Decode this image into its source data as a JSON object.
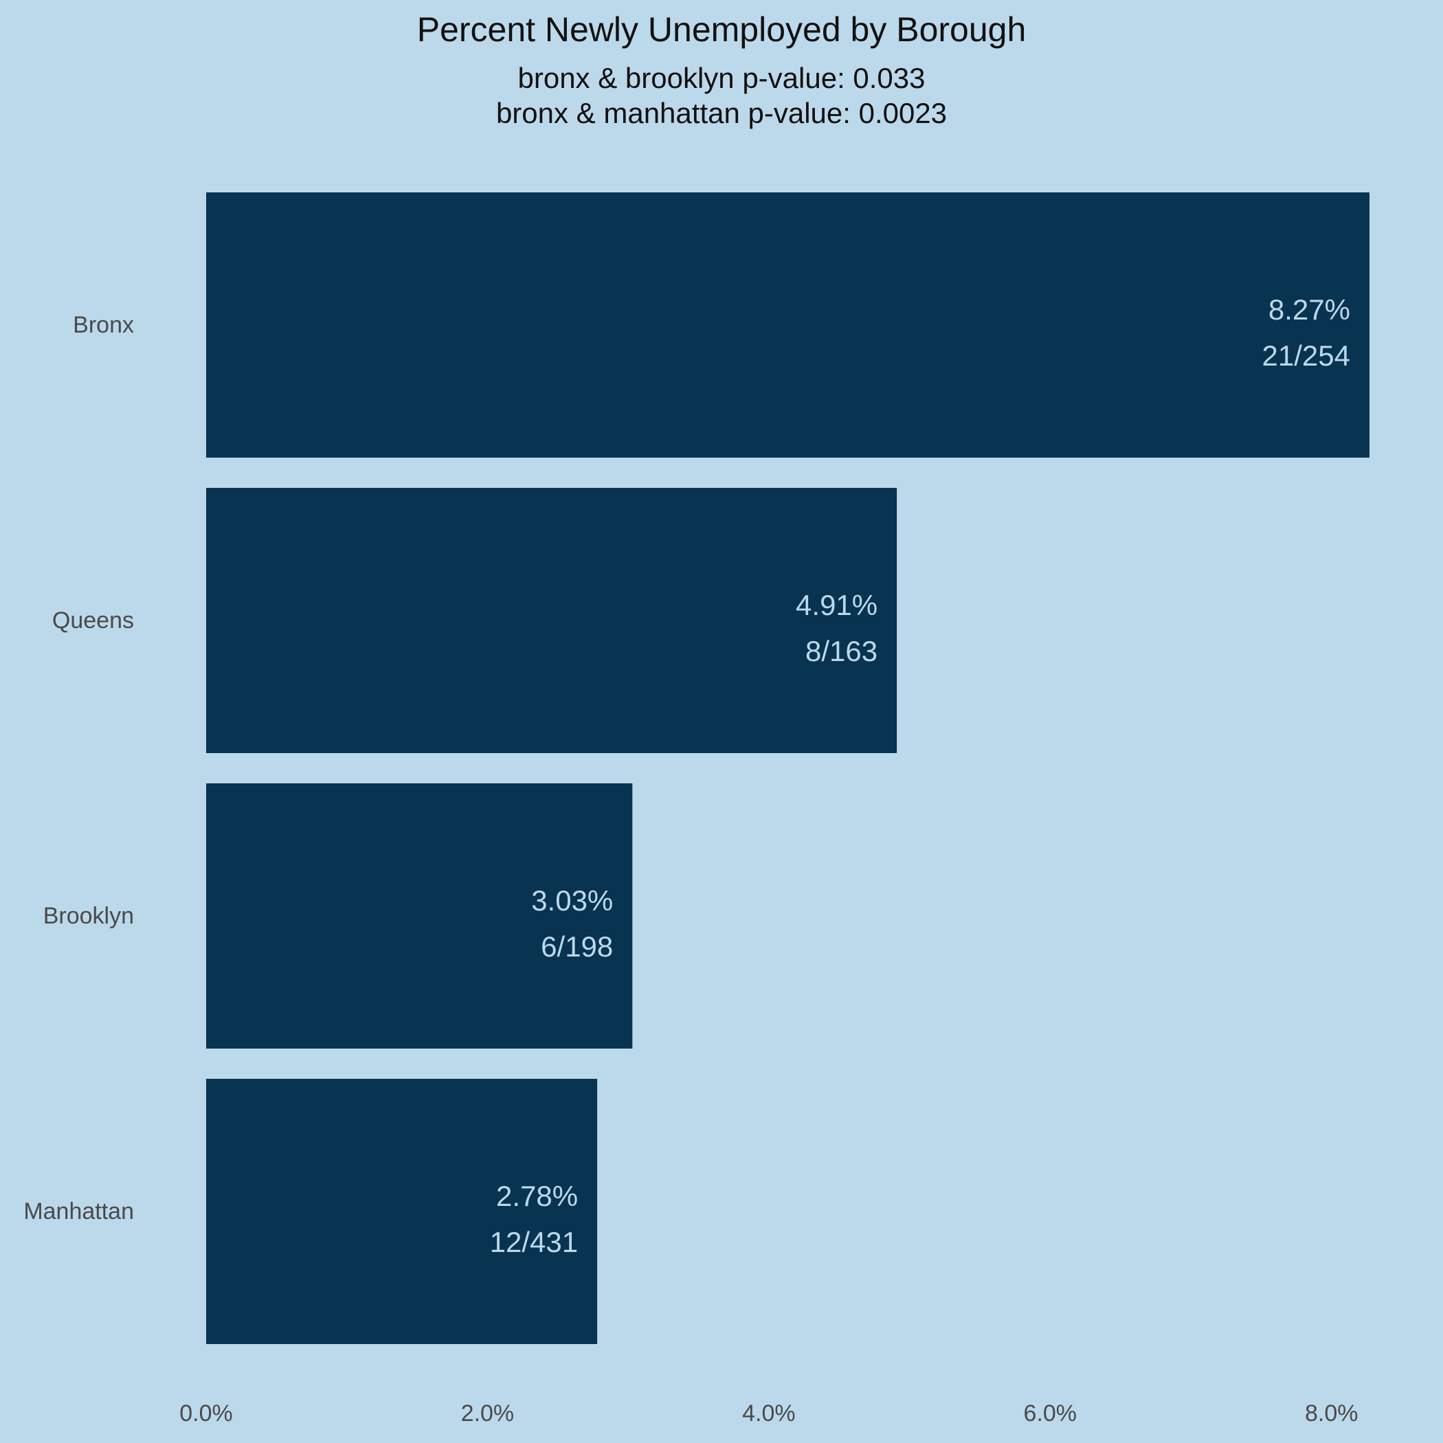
{
  "chart_data": {
    "type": "bar",
    "orientation": "horizontal",
    "title": "Percent Newly Unemployed by Borough",
    "subtitle": [
      "bronx & brooklyn p-value: 0.033",
      "bronx & manhattan p-value: 0.0023"
    ],
    "xlabel": "",
    "ylabel": "",
    "categories": [
      "Bronx",
      "Queens",
      "Brooklyn",
      "Manhattan"
    ],
    "values": [
      8.27,
      4.91,
      3.03,
      2.78
    ],
    "value_labels": [
      "8.27%",
      "4.91%",
      "3.03%",
      "2.78%"
    ],
    "count_labels": [
      "21/254",
      "8/163",
      "6/198",
      "12/431"
    ],
    "xticks": [
      0,
      2,
      4,
      6,
      8
    ],
    "xtick_labels": [
      "0.0%",
      "2.0%",
      "4.0%",
      "6.0%",
      "8.0%"
    ],
    "xlim": [
      0,
      8.27
    ],
    "grid": false,
    "legend": "none",
    "colors": {
      "background": "#bcd9eb",
      "bar": "#083452",
      "bar_label": "#bcd9eb",
      "axis_text": "#4a4a4a",
      "title": "#111111"
    }
  }
}
